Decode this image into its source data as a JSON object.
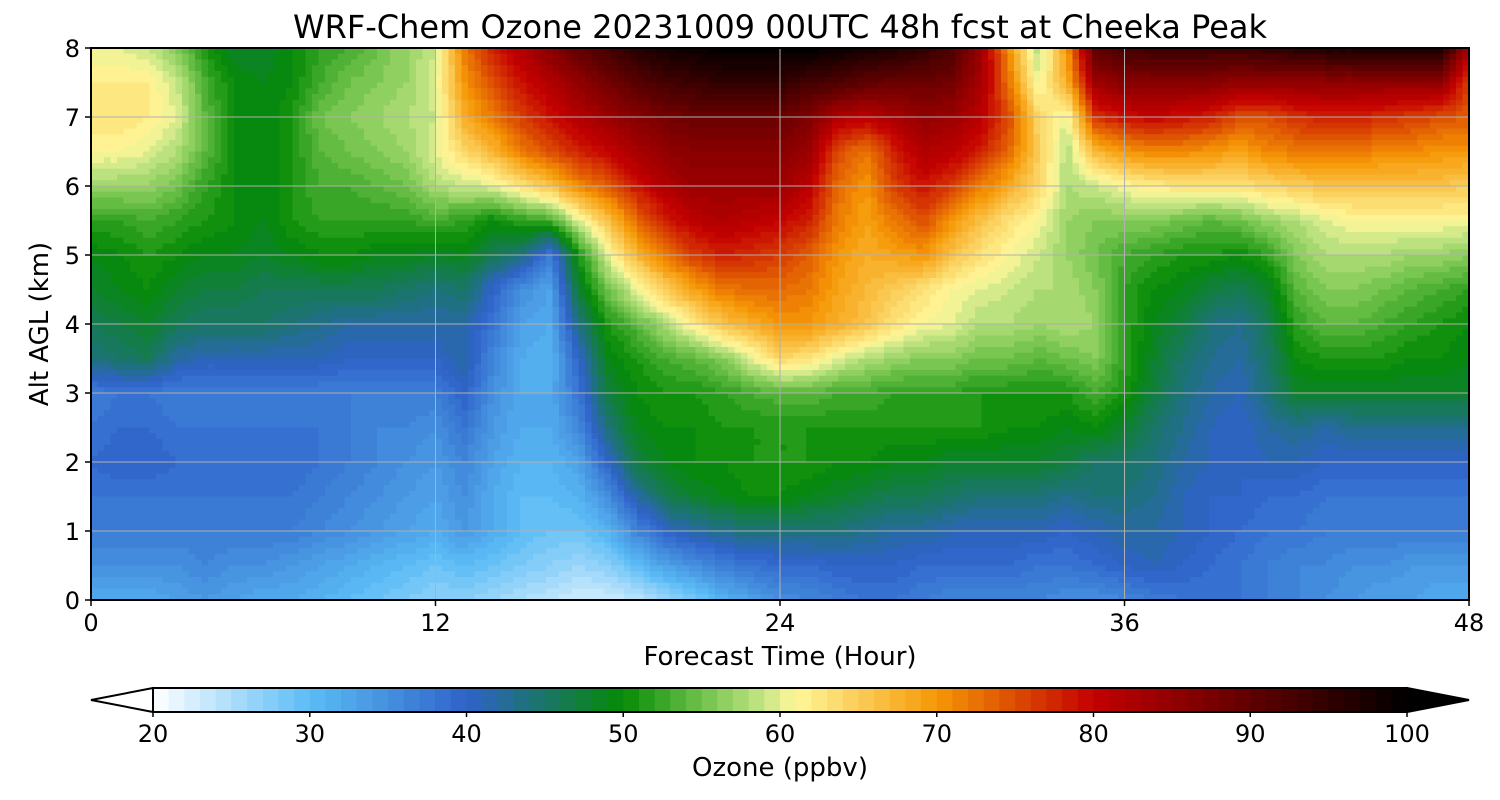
{
  "chart_data": {
    "type": "heatmap",
    "title": "WRF-Chem Ozone  20231009 00UTC 48h fcst at Cheeka Peak",
    "xlabel": "Forecast Time (Hour)",
    "ylabel": "Alt AGL (km)",
    "xlim": [
      0,
      48
    ],
    "ylim": [
      0,
      8
    ],
    "xticks": [
      "0",
      "12",
      "24",
      "36",
      "48"
    ],
    "yticks": [
      "0",
      "1",
      "2",
      "3",
      "4",
      "5",
      "6",
      "7",
      "8"
    ],
    "grid": true,
    "colorbar": {
      "label": "Ozone  (ppbv)",
      "min": 20,
      "max": 100,
      "ticks": [
        "20",
        "30",
        "40",
        "50",
        "60",
        "70",
        "80",
        "90",
        "100"
      ],
      "extend": "both",
      "stops": [
        [
          20,
          "#ffffff"
        ],
        [
          30,
          "#5bbcf5"
        ],
        [
          40,
          "#2f62c9"
        ],
        [
          50,
          "#058a05"
        ],
        [
          55,
          "#6ec24a"
        ],
        [
          59,
          "#c6e686"
        ],
        [
          61,
          "#fff79a"
        ],
        [
          70,
          "#f59805"
        ],
        [
          80,
          "#c40000"
        ],
        [
          90,
          "#600000"
        ],
        [
          100,
          "#000000"
        ]
      ]
    },
    "x": [
      0,
      1,
      2,
      3,
      4,
      5,
      6,
      7,
      8,
      9,
      10,
      11,
      12,
      13,
      14,
      15,
      16,
      17,
      18,
      19,
      20,
      21,
      22,
      23,
      24,
      25,
      26,
      27,
      28,
      29,
      30,
      31,
      32,
      33,
      34,
      35,
      36,
      37,
      38,
      39,
      40,
      41,
      42,
      43,
      44,
      45,
      46,
      47,
      48
    ],
    "y": [
      0,
      0.5,
      1,
      1.5,
      2,
      2.5,
      3,
      3.5,
      4,
      4.5,
      5,
      5.5,
      6,
      6.5,
      7,
      7.5,
      8
    ],
    "values": [
      [
        32,
        32,
        32,
        33,
        34,
        33,
        32,
        32,
        31,
        30,
        29,
        28,
        27,
        27,
        26,
        25,
        24,
        23,
        23,
        24,
        26,
        28,
        31,
        33,
        35,
        36,
        37,
        38,
        38,
        37,
        36,
        36,
        36,
        36,
        35,
        35,
        36,
        37,
        38,
        38,
        38,
        37,
        36,
        35,
        34,
        33,
        33,
        32,
        32
      ],
      [
        35,
        35,
        35,
        35,
        36,
        35,
        35,
        34,
        33,
        32,
        31,
        30,
        29,
        30,
        29,
        28,
        27,
        26,
        27,
        30,
        33,
        35,
        37,
        38,
        39,
        39,
        40,
        40,
        40,
        39,
        39,
        39,
        39,
        38,
        38,
        39,
        40,
        41,
        40,
        39,
        38,
        37,
        36,
        36,
        35,
        35,
        34,
        34,
        34
      ],
      [
        37,
        37,
        37,
        37,
        37,
        37,
        37,
        37,
        36,
        35,
        34,
        33,
        32,
        34,
        32,
        30,
        29,
        29,
        31,
        36,
        40,
        42,
        43,
        44,
        44,
        44,
        44,
        43,
        42,
        42,
        41,
        41,
        41,
        41,
        40,
        41,
        42,
        42,
        41,
        40,
        39,
        38,
        38,
        37,
        37,
        37,
        37,
        37,
        37
      ],
      [
        38,
        38,
        38,
        38,
        38,
        38,
        38,
        38,
        37,
        36,
        35,
        34,
        33,
        35,
        32,
        30,
        30,
        31,
        35,
        42,
        46,
        48,
        49,
        50,
        50,
        49,
        48,
        47,
        46,
        46,
        45,
        44,
        44,
        44,
        43,
        44,
        44,
        43,
        41,
        40,
        40,
        39,
        39,
        38,
        38,
        38,
        38,
        38,
        38
      ],
      [
        39,
        40,
        40,
        39,
        39,
        39,
        39,
        39,
        38,
        37,
        36,
        35,
        34,
        36,
        33,
        31,
        31,
        33,
        40,
        47,
        49,
        50,
        50,
        51,
        51,
        51,
        50,
        50,
        49,
        49,
        48,
        48,
        48,
        48,
        47,
        45,
        45,
        44,
        42,
        41,
        40,
        41,
        41,
        40,
        40,
        40,
        40,
        40,
        40
      ],
      [
        38,
        39,
        39,
        38,
        38,
        38,
        38,
        38,
        38,
        37,
        36,
        36,
        35,
        38,
        34,
        32,
        32,
        36,
        44,
        49,
        50,
        50,
        51,
        51,
        51,
        51,
        51,
        51,
        51,
        51,
        51,
        51,
        50,
        50,
        49,
        50,
        48,
        45,
        43,
        41,
        40,
        42,
        43,
        42,
        43,
        43,
        43,
        43,
        43
      ],
      [
        37,
        38,
        38,
        37,
        37,
        37,
        37,
        37,
        37,
        37,
        37,
        37,
        37,
        40,
        35,
        32,
        32,
        38,
        47,
        50,
        51,
        51,
        52,
        53,
        54,
        54,
        53,
        53,
        52,
        52,
        52,
        51,
        51,
        51,
        51,
        53,
        51,
        47,
        44,
        42,
        41,
        44,
        48,
        48,
        48,
        48,
        48,
        48,
        48
      ],
      [
        44,
        45,
        46,
        42,
        41,
        41,
        41,
        41,
        41,
        40,
        40,
        40,
        40,
        42,
        36,
        32,
        31,
        40,
        49,
        51,
        53,
        54,
        56,
        60,
        64,
        63,
        60,
        58,
        57,
        56,
        56,
        55,
        55,
        54,
        55,
        56,
        52,
        48,
        45,
        43,
        42,
        45,
        50,
        51,
        51,
        51,
        50,
        50,
        49
      ],
      [
        46,
        47,
        48,
        46,
        45,
        45,
        45,
        44,
        43,
        42,
        42,
        42,
        42,
        42,
        38,
        33,
        32,
        44,
        51,
        54,
        58,
        62,
        66,
        68,
        70,
        70,
        68,
        66,
        63,
        61,
        60,
        58,
        58,
        57,
        58,
        57,
        52,
        49,
        47,
        44,
        43,
        46,
        52,
        54,
        54,
        53,
        52,
        51,
        50
      ],
      [
        48,
        49,
        50,
        48,
        47,
        47,
        46,
        46,
        46,
        46,
        46,
        45,
        44,
        45,
        40,
        35,
        33,
        48,
        55,
        60,
        65,
        69,
        72,
        73,
        73,
        72,
        69,
        67,
        65,
        63,
        61,
        60,
        59,
        58,
        58,
        56,
        52,
        50,
        49,
        47,
        46,
        48,
        54,
        56,
        56,
        55,
        54,
        53,
        52
      ],
      [
        49,
        50,
        51,
        50,
        49,
        49,
        48,
        49,
        50,
        50,
        49,
        49,
        48,
        49,
        46,
        44,
        37,
        51,
        60,
        67,
        72,
        76,
        78,
        77,
        76,
        74,
        70,
        68,
        69,
        70,
        66,
        63,
        61,
        59,
        57,
        55,
        53,
        52,
        51,
        51,
        50,
        52,
        56,
        58,
        58,
        58,
        57,
        57,
        56
      ],
      [
        52,
        52,
        53,
        52,
        51,
        50,
        49,
        51,
        52,
        52,
        52,
        52,
        53,
        52,
        50,
        52,
        53,
        60,
        66,
        73,
        78,
        81,
        82,
        81,
        80,
        78,
        72,
        69,
        72,
        75,
        70,
        66,
        63,
        61,
        57,
        56,
        56,
        56,
        55,
        54,
        55,
        57,
        58,
        60,
        61,
        61,
        61,
        61,
        61
      ],
      [
        57,
        57,
        57,
        55,
        52,
        50,
        49,
        51,
        53,
        53,
        54,
        55,
        58,
        59,
        60,
        63,
        66,
        71,
        74,
        79,
        82,
        84,
        84,
        84,
        84,
        81,
        73,
        70,
        76,
        79,
        76,
        72,
        68,
        64,
        58,
        59,
        61,
        62,
        63,
        63,
        63,
        64,
        65,
        66,
        66,
        66,
        66,
        66,
        65
      ],
      [
        61,
        61,
        60,
        58,
        54,
        50,
        49,
        51,
        54,
        55,
        56,
        57,
        60,
        64,
        67,
        72,
        75,
        78,
        80,
        83,
        85,
        86,
        86,
        86,
        86,
        84,
        75,
        72,
        78,
        82,
        81,
        78,
        73,
        65,
        58,
        67,
        70,
        71,
        71,
        70,
        69,
        71,
        72,
        72,
        72,
        71,
        71,
        70,
        70
      ],
      [
        63,
        63,
        62,
        60,
        54,
        50,
        49,
        51,
        55,
        56,
        57,
        58,
        59,
        68,
        72,
        76,
        79,
        82,
        84,
        86,
        88,
        89,
        89,
        89,
        89,
        87,
        82,
        81,
        83,
        85,
        84,
        81,
        75,
        64,
        60,
        77,
        79,
        80,
        79,
        78,
        75,
        75,
        77,
        78,
        78,
        77,
        76,
        75,
        74
      ],
      [
        62,
        62,
        62,
        59,
        53,
        50,
        49,
        50,
        53,
        55,
        56,
        57,
        60,
        70,
        75,
        79,
        82,
        85,
        88,
        91,
        93,
        94,
        95,
        95,
        95,
        93,
        92,
        90,
        89,
        89,
        88,
        83,
        72,
        60,
        68,
        84,
        86,
        86,
        86,
        86,
        85,
        85,
        85,
        85,
        85,
        85,
        85,
        85,
        76
      ],
      [
        60,
        60,
        59,
        56,
        51,
        48,
        48,
        50,
        52,
        53,
        55,
        57,
        59,
        72,
        78,
        82,
        86,
        90,
        93,
        96,
        98,
        99,
        100,
        100,
        100,
        100,
        99,
        98,
        97,
        95,
        92,
        84,
        70,
        58,
        70,
        90,
        93,
        94,
        94,
        94,
        94,
        95,
        96,
        97,
        97,
        98,
        98,
        98,
        82
      ]
    ]
  }
}
